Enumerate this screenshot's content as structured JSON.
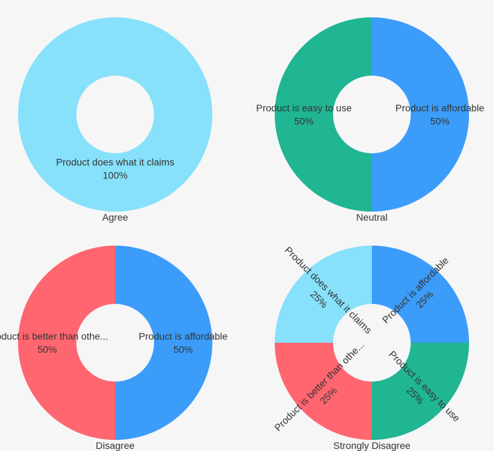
{
  "colors": {
    "background": "#f6f6f7",
    "label_text": "#333333"
  },
  "chart_data": [
    {
      "type": "donut",
      "title": "Agree",
      "slices": [
        {
          "name": "Product does what it claims",
          "value": 100,
          "label": "100%",
          "color": "#87e1fb"
        }
      ]
    },
    {
      "type": "donut",
      "title": "Neutral",
      "slices": [
        {
          "name": "Product is affordable",
          "value": 50,
          "label": "50%",
          "color": "#3b9cf9"
        },
        {
          "name": "Product is easy to use",
          "value": 50,
          "label": "50%",
          "color": "#20b593"
        }
      ]
    },
    {
      "type": "donut",
      "title": "Disagree",
      "slices": [
        {
          "name": "Product is affordable",
          "value": 50,
          "label": "50%",
          "color": "#3b9cf9"
        },
        {
          "name": "Product is better than othe...",
          "value": 50,
          "label": "50%",
          "color": "#ff6670"
        }
      ]
    },
    {
      "type": "donut",
      "title": "Strongly Disagree",
      "slices": [
        {
          "name": "Product is affordable",
          "value": 25,
          "label": "25%",
          "color": "#3b9cf9"
        },
        {
          "name": "Product is easy to use",
          "value": 25,
          "label": "25%",
          "color": "#20b593"
        },
        {
          "name": "Product is better than othe...",
          "value": 25,
          "label": "25%",
          "color": "#ff6670"
        },
        {
          "name": "Product does what it claims",
          "value": 25,
          "label": "25%",
          "color": "#87e1fb"
        }
      ]
    }
  ]
}
